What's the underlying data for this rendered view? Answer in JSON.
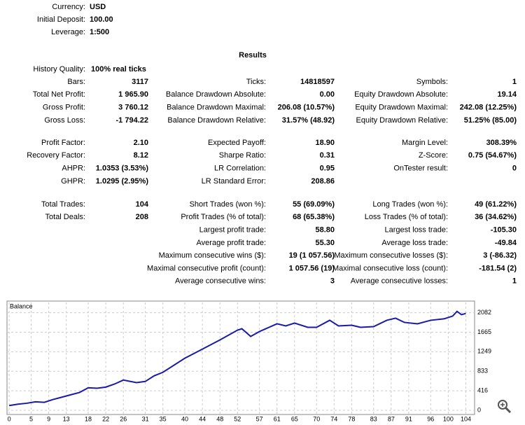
{
  "header": [
    {
      "label": "Currency:",
      "value": "USD"
    },
    {
      "label": "Initial Deposit:",
      "value": "100.00"
    },
    {
      "label": "Leverage:",
      "value": "1:500"
    }
  ],
  "results_title": "Results",
  "history_quality": {
    "label": "History Quality:",
    "value": "100% real ticks"
  },
  "blocks": [
    {
      "rows": [
        [
          {
            "label": "Bars:",
            "value": "3117"
          },
          {
            "label": "Ticks:",
            "value": "14818597"
          },
          {
            "label": "Symbols:",
            "value": "1"
          }
        ],
        [
          {
            "label": "Total Net Profit:",
            "value": "1 965.90"
          },
          {
            "label": "Balance Drawdown Absolute:",
            "value": "0.00"
          },
          {
            "label": "Equity Drawdown Absolute:",
            "value": "19.14"
          }
        ],
        [
          {
            "label": "Gross Profit:",
            "value": "3 760.12"
          },
          {
            "label": "Balance Drawdown Maximal:",
            "value": "206.08 (10.57%)"
          },
          {
            "label": "Equity Drawdown Maximal:",
            "value": "242.08 (12.25%)"
          }
        ],
        [
          {
            "label": "Gross Loss:",
            "value": "-1 794.22"
          },
          {
            "label": "Balance Drawdown Relative:",
            "value": "31.57% (48.92)"
          },
          {
            "label": "Equity Drawdown Relative:",
            "value": "51.25% (85.00)"
          }
        ]
      ]
    },
    {
      "rows": [
        [
          {
            "label": "Profit Factor:",
            "value": "2.10"
          },
          {
            "label": "Expected Payoff:",
            "value": "18.90"
          },
          {
            "label": "Margin Level:",
            "value": "308.39%"
          }
        ],
        [
          {
            "label": "Recovery Factor:",
            "value": "8.12"
          },
          {
            "label": "Sharpe Ratio:",
            "value": "0.31"
          },
          {
            "label": "Z-Score:",
            "value": "0.75 (54.67%)"
          }
        ],
        [
          {
            "label": "AHPR:",
            "value": "1.0353 (3.53%)"
          },
          {
            "label": "LR Correlation:",
            "value": "0.95"
          },
          {
            "label": "OnTester result:",
            "value": "0"
          }
        ],
        [
          {
            "label": "GHPR:",
            "value": "1.0295 (2.95%)"
          },
          {
            "label": "LR Standard Error:",
            "value": "208.86"
          },
          null
        ]
      ]
    },
    {
      "rows": [
        [
          {
            "label": "Total Trades:",
            "value": "104"
          },
          {
            "label": "Short Trades (won %):",
            "value": "55 (69.09%)"
          },
          {
            "label": "Long Trades (won %):",
            "value": "49 (61.22%)"
          }
        ],
        [
          {
            "label": "Total Deals:",
            "value": "208"
          },
          {
            "label": "Profit Trades (% of total):",
            "value": "68 (65.38%)"
          },
          {
            "label": "Loss Trades (% of total):",
            "value": "36 (34.62%)"
          }
        ],
        [
          null,
          {
            "label": "Largest profit trade:",
            "value": "58.80"
          },
          {
            "label": "Largest loss trade:",
            "value": "-105.30"
          }
        ],
        [
          null,
          {
            "label": "Average profit trade:",
            "value": "55.30"
          },
          {
            "label": "Average loss trade:",
            "value": "-49.84"
          }
        ],
        [
          null,
          {
            "label": "Maximum consecutive wins ($):",
            "value": "19 (1 057.56)"
          },
          {
            "label": "Maximum consecutive losses ($):",
            "value": "3 (-86.32)"
          }
        ],
        [
          null,
          {
            "label": "Maximal consecutive profit (count):",
            "value": "1 057.56 (19)"
          },
          {
            "label": "Maximal consecutive loss (count):",
            "value": "-181.54 (2)"
          }
        ],
        [
          null,
          {
            "label": "Average consecutive wins:",
            "value": "3"
          },
          {
            "label": "Average consecutive losses:",
            "value": "1"
          }
        ]
      ]
    }
  ],
  "chart_data": {
    "type": "line",
    "x": [
      0,
      2,
      4,
      6,
      8,
      10,
      12,
      14,
      16,
      18,
      20,
      22,
      24,
      26,
      29,
      31,
      33,
      35,
      40,
      44,
      48,
      52,
      53,
      55,
      57,
      61,
      63,
      65,
      68,
      70,
      73,
      75,
      78,
      80,
      83,
      86,
      88,
      90,
      93,
      96,
      99,
      101,
      102,
      103,
      104
    ],
    "series": [
      {
        "name": "Balance",
        "color": "#1a1aa8",
        "values": [
          100,
          130,
          150,
          180,
          170,
          230,
          280,
          330,
          380,
          480,
          470,
          495,
          560,
          645,
          590,
          615,
          735,
          810,
          1110,
          1305,
          1500,
          1710,
          1740,
          1575,
          1680,
          1845,
          1800,
          1860,
          1770,
          1770,
          1920,
          1800,
          1815,
          1770,
          1785,
          1920,
          1965,
          1875,
          1845,
          1920,
          1950,
          2010,
          2110,
          2040,
          2065.9
        ]
      }
    ],
    "xlim": [
      -0.5,
      106
    ],
    "ylim": [
      -90,
      2300
    ],
    "xticks": [
      0,
      5,
      9,
      13,
      18,
      22,
      26,
      31,
      35,
      40,
      44,
      48,
      52,
      57,
      61,
      65,
      70,
      74,
      78,
      83,
      87,
      91,
      96,
      100,
      104
    ],
    "yticks": [
      0,
      416,
      833,
      1249,
      1665,
      2082
    ],
    "grid": true
  }
}
